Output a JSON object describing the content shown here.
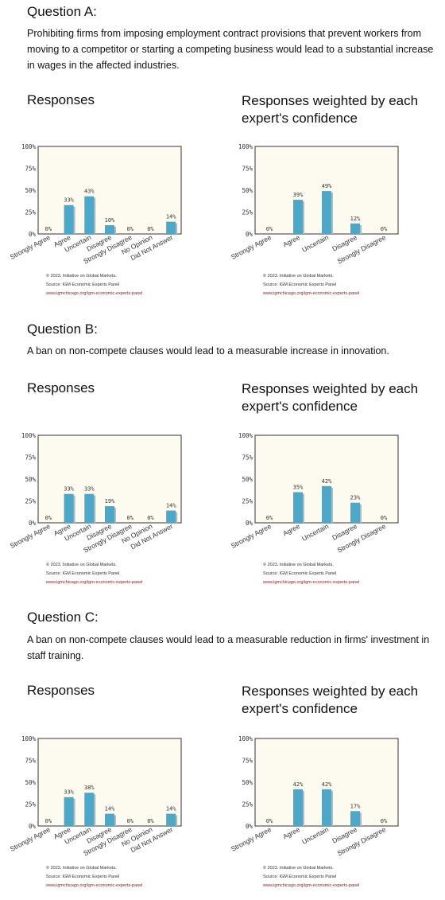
{
  "questions": [
    {
      "title": "Question A:",
      "text": "Prohibiting firms from imposing employment contract provisions that prevent workers from moving to a competitor or starting a competing business would lead to a substantial increase in wages in the affected industries.",
      "responses_title": "Responses",
      "weighted_title": "Responses weighted by each expert's confidence"
    },
    {
      "title": "Question B:",
      "text": "A ban on non-compete clauses would lead to a measurable increase in innovation.",
      "responses_title": "Responses",
      "weighted_title": "Responses weighted by each expert's confidence"
    },
    {
      "title": "Question C:",
      "text": "A ban on non-compete clauses would lead to a measurable reduction in firms' investment in staff training.",
      "responses_title": "Responses",
      "weighted_title": "Responses weighted by each expert's confidence"
    }
  ],
  "credits": {
    "copyright": "© 2023. Initiative on Global Markets.",
    "source": "Source: IGM Economic Experts Panel",
    "url": "www.igmchicago.org/igm-economic-experts-panel"
  },
  "colors": {
    "bar": "#4ba8c9",
    "bar_shadow": "#b8b8b8",
    "plot_bg": "#fdfbf0",
    "frame": "#333333"
  },
  "chart_data": [
    {
      "type": "bar",
      "question": "A",
      "panel": "Responses",
      "categories": [
        "Strongly Agree",
        "Agree",
        "Uncertain",
        "Disagree",
        "Strongly Disagree",
        "No Opinion",
        "Did Not Answer"
      ],
      "values": [
        0,
        33,
        43,
        10,
        0,
        0,
        14
      ],
      "value_labels": [
        "0%",
        "33%",
        "43%",
        "10%",
        "0%",
        "0%",
        "14%"
      ],
      "ylim": [
        0,
        100
      ],
      "yticks": [
        "0%",
        "25%",
        "50%",
        "75%",
        "100%"
      ]
    },
    {
      "type": "bar",
      "question": "A",
      "panel": "Responses weighted by each expert's confidence",
      "categories": [
        "Strongly Agree",
        "Agree",
        "Uncertain",
        "Disagree",
        "Strongly Disagree"
      ],
      "values": [
        0,
        39,
        49,
        12,
        0
      ],
      "value_labels": [
        "0%",
        "39%",
        "49%",
        "12%",
        "0%"
      ],
      "ylim": [
        0,
        100
      ],
      "yticks": [
        "0%",
        "25%",
        "50%",
        "75%",
        "100%"
      ]
    },
    {
      "type": "bar",
      "question": "B",
      "panel": "Responses",
      "categories": [
        "Strongly Agree",
        "Agree",
        "Uncertain",
        "Disagree",
        "Strongly Disagree",
        "No Opinion",
        "Did Not Answer"
      ],
      "values": [
        0,
        33,
        33,
        19,
        0,
        0,
        14
      ],
      "value_labels": [
        "0%",
        "33%",
        "33%",
        "19%",
        "0%",
        "0%",
        "14%"
      ],
      "ylim": [
        0,
        100
      ],
      "yticks": [
        "0%",
        "25%",
        "50%",
        "75%",
        "100%"
      ]
    },
    {
      "type": "bar",
      "question": "B",
      "panel": "Responses weighted by each expert's confidence",
      "categories": [
        "Strongly Agree",
        "Agree",
        "Uncertain",
        "Disagree",
        "Strongly Disagree"
      ],
      "values": [
        0,
        35,
        42,
        23,
        0
      ],
      "value_labels": [
        "0%",
        "35%",
        "42%",
        "23%",
        "0%"
      ],
      "ylim": [
        0,
        100
      ],
      "yticks": [
        "0%",
        "25%",
        "50%",
        "75%",
        "100%"
      ]
    },
    {
      "type": "bar",
      "question": "C",
      "panel": "Responses",
      "categories": [
        "Strongly Agree",
        "Agree",
        "Uncertain",
        "Disagree",
        "Strongly Disagree",
        "No Opinion",
        "Did Not Answer"
      ],
      "values": [
        0,
        33,
        38,
        14,
        0,
        0,
        14
      ],
      "value_labels": [
        "0%",
        "33%",
        "38%",
        "14%",
        "0%",
        "0%",
        "14%"
      ],
      "ylim": [
        0,
        100
      ],
      "yticks": [
        "0%",
        "25%",
        "50%",
        "75%",
        "100%"
      ]
    },
    {
      "type": "bar",
      "question": "C",
      "panel": "Responses weighted by each expert's confidence",
      "categories": [
        "Strongly Agree",
        "Agree",
        "Uncertain",
        "Disagree",
        "Strongly Disagree"
      ],
      "values": [
        0,
        42,
        42,
        17,
        0
      ],
      "value_labels": [
        "0%",
        "42%",
        "42%",
        "17%",
        "0%"
      ],
      "ylim": [
        0,
        100
      ],
      "yticks": [
        "0%",
        "25%",
        "50%",
        "75%",
        "100%"
      ]
    }
  ]
}
